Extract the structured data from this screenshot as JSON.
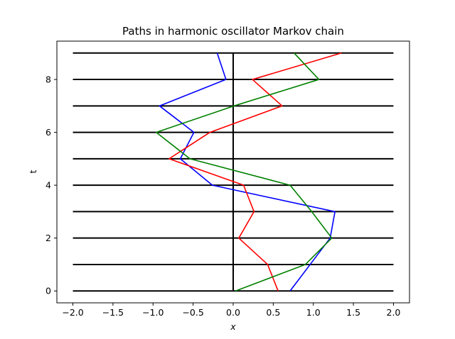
{
  "chart_data": {
    "type": "line",
    "title": "Paths in harmonic oscillator Markov chain",
    "xlabel": "x",
    "ylabel": "t",
    "xlim": [
      -2.2,
      2.2
    ],
    "ylim": [
      -0.45,
      9.45
    ],
    "xticks": [
      -2.0,
      -1.5,
      -1.0,
      -0.5,
      0.0,
      0.5,
      1.0,
      1.5,
      2.0
    ],
    "xtick_labels": [
      "−2.0",
      "−1.5",
      "−1.0",
      "−0.5",
      "0.0",
      "0.5",
      "1.0",
      "1.5",
      "2.0"
    ],
    "yticks": [
      0,
      2,
      4,
      6,
      8
    ],
    "ytick_labels": [
      "0",
      "2",
      "4",
      "6",
      "8"
    ],
    "grid": false,
    "reference_lines": {
      "horizontal": {
        "y": [
          0,
          1,
          2,
          3,
          4,
          5,
          6,
          7,
          8,
          9
        ],
        "x_range": [
          -2,
          2
        ],
        "color": "#000000"
      },
      "vertical": {
        "x": 0,
        "y_range": [
          0,
          9
        ],
        "color": "#000000"
      }
    },
    "series": [
      {
        "color": "#0000ff",
        "t": [
          0,
          1,
          2,
          3,
          4,
          5,
          6,
          7,
          8,
          9
        ],
        "x": [
          0.71,
          0.96,
          1.21,
          1.27,
          -0.26,
          -0.66,
          -0.49,
          -0.92,
          -0.09,
          -0.2
        ]
      },
      {
        "color": "#ff0000",
        "t": [
          0,
          1,
          2,
          3,
          4,
          5,
          6,
          7,
          8,
          9
        ],
        "x": [
          0.56,
          0.43,
          0.07,
          0.26,
          0.13,
          -0.8,
          -0.29,
          0.61,
          0.24,
          1.35
        ]
      },
      {
        "color": "#008000",
        "t": [
          0,
          1,
          2,
          3,
          4,
          5,
          6,
          7,
          8,
          9
        ],
        "x": [
          0.03,
          0.9,
          1.23,
          0.98,
          0.71,
          -0.54,
          -0.96,
          0.01,
          1.07,
          0.76
        ]
      }
    ]
  }
}
